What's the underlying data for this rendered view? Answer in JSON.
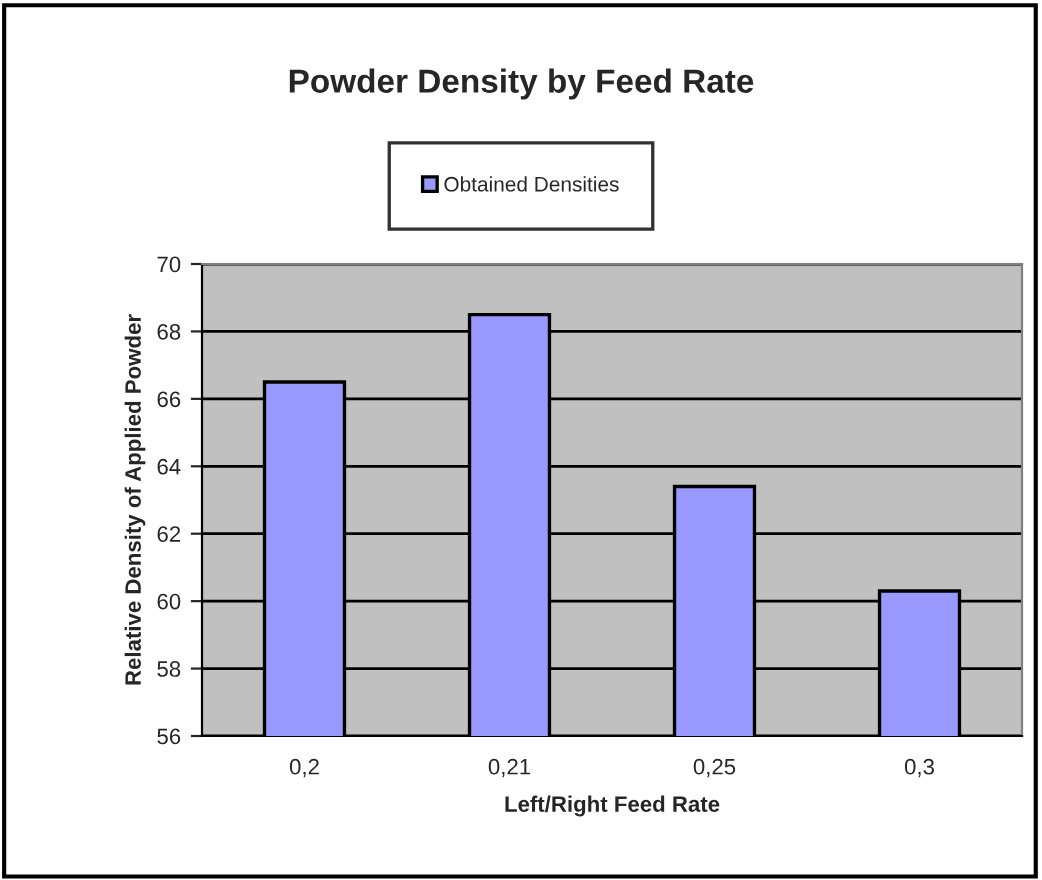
{
  "chart_data": {
    "type": "bar",
    "title": "Powder Density by Feed Rate",
    "xlabel": "Left/Right Feed Rate",
    "ylabel": "Relative Density of Applied Powder",
    "categories": [
      "0,2",
      "0,21",
      "0,25",
      "0,3"
    ],
    "series": [
      {
        "name": "Obtained Densities",
        "color": "#9999ff",
        "values": [
          66.5,
          68.5,
          63.4,
          60.3
        ]
      }
    ],
    "ylim": [
      56,
      70
    ],
    "yticks": [
      56,
      58,
      60,
      62,
      64,
      66,
      68,
      70
    ],
    "grid": "y",
    "legend": "top"
  }
}
